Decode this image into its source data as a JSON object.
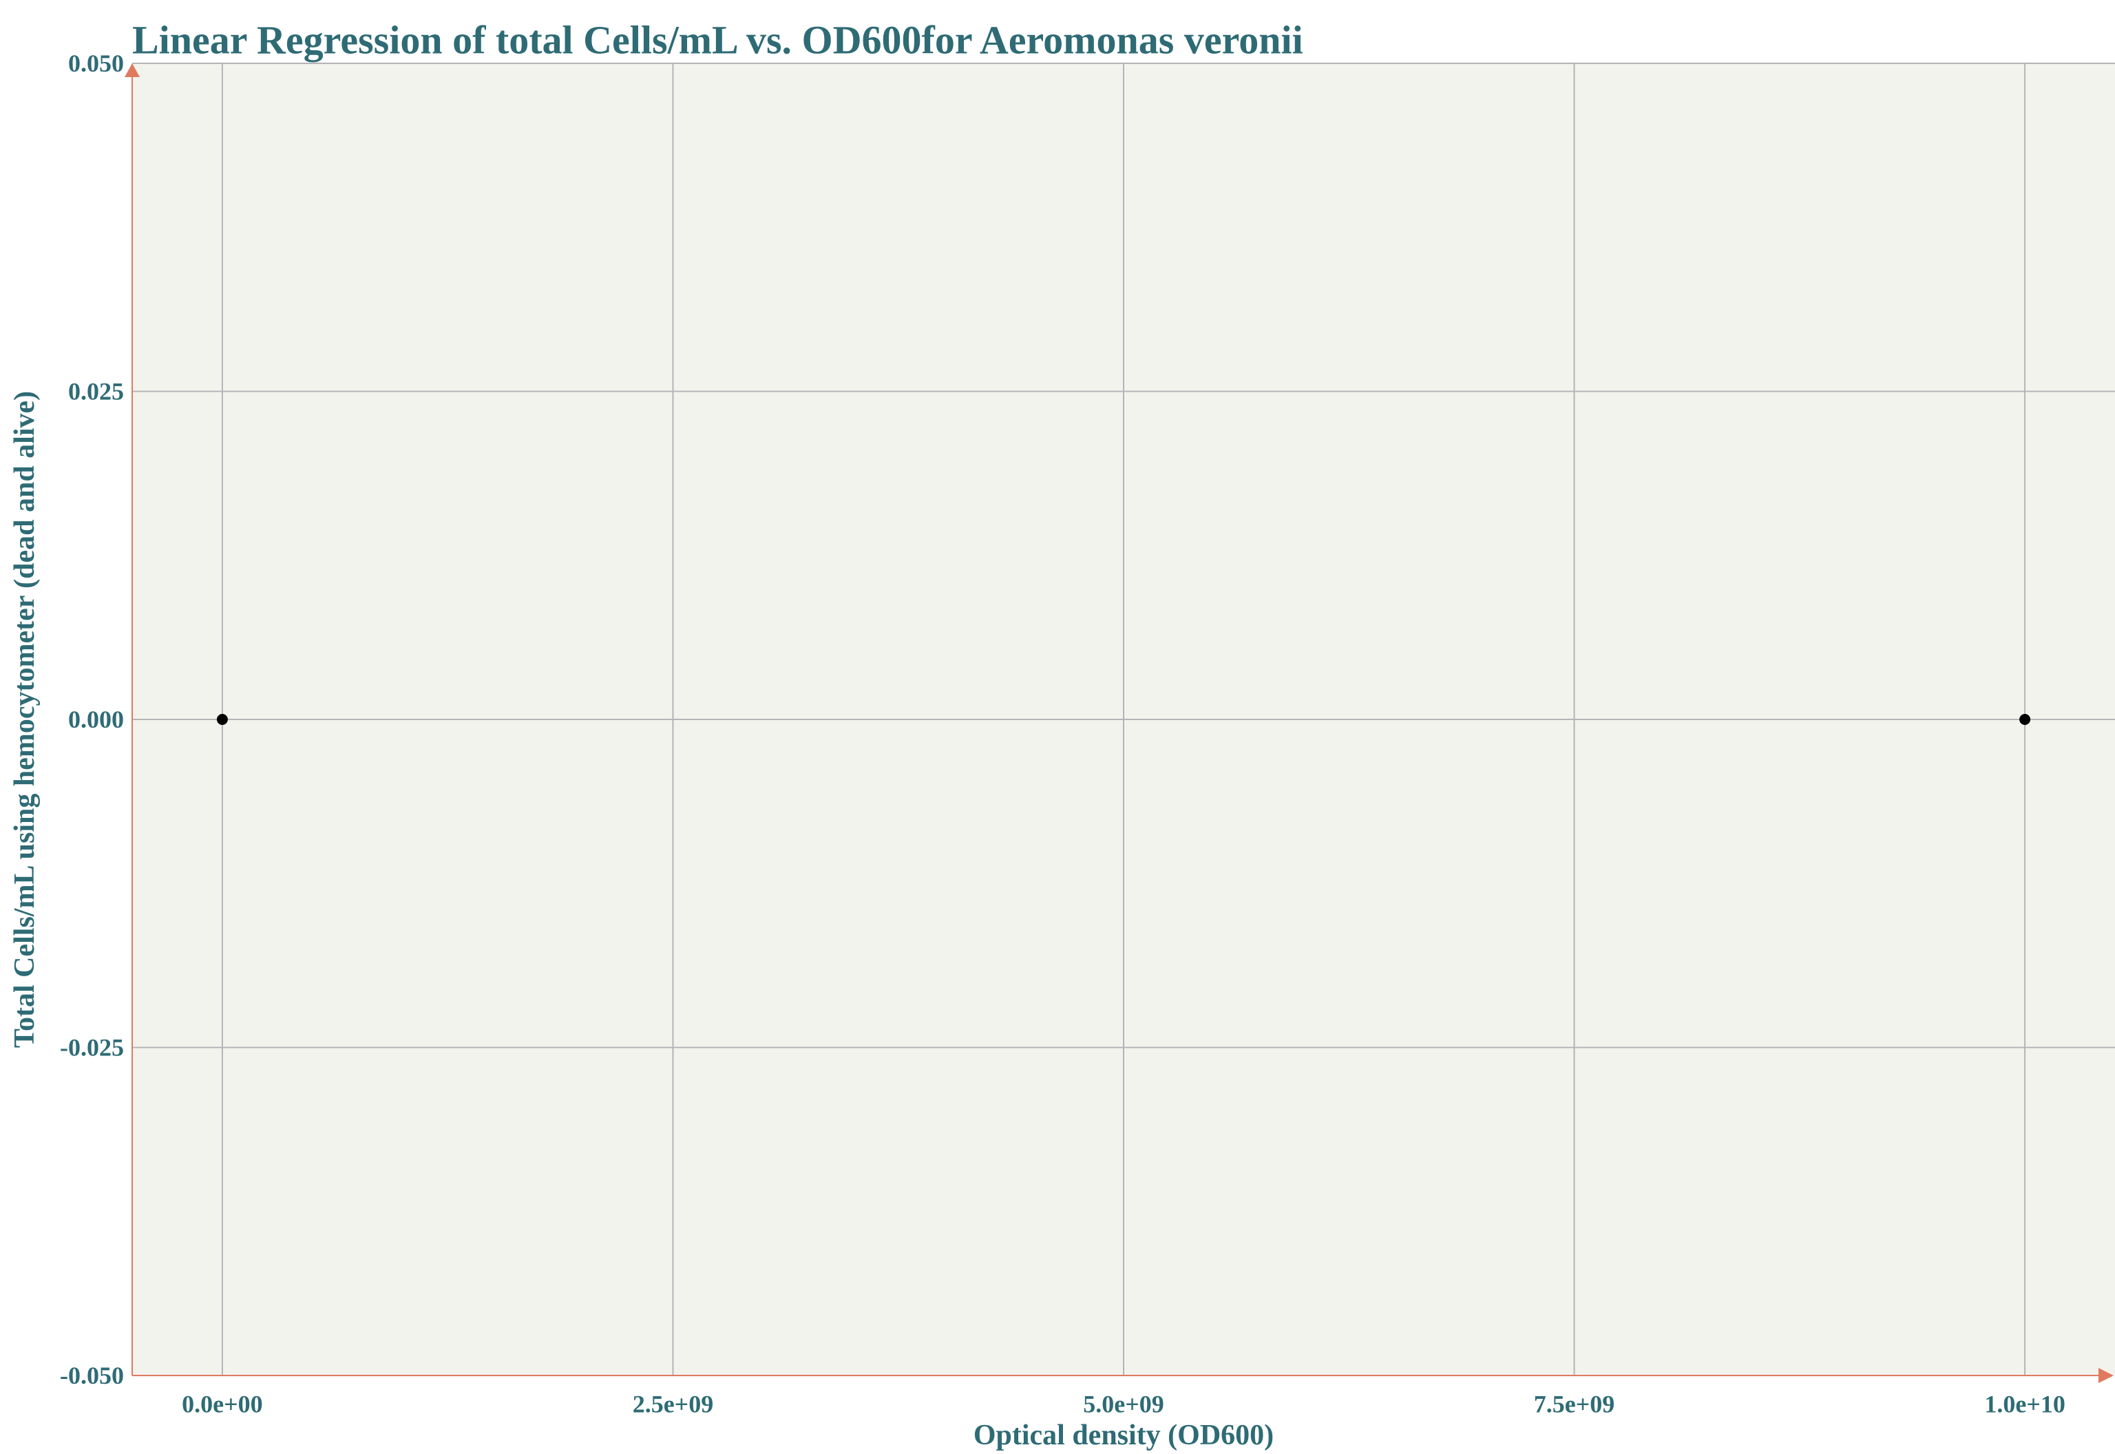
{
  "chart_data": {
    "type": "scatter",
    "title": "Linear Regression of total Cells/mL vs. OD600for Aeromonas veronii",
    "xlabel": "Optical density (OD600)",
    "ylabel": "Total Cells/mL using hemocytometer (dead and alive)",
    "xlim": [
      -500000000,
      10500000000
    ],
    "ylim": [
      -0.05,
      0.05
    ],
    "x_ticks": [
      0,
      2500000000,
      5000000000,
      7500000000,
      10000000000
    ],
    "x_tick_labels": [
      "0.0e+00",
      "2.5e+09",
      "5.0e+09",
      "7.5e+09",
      "1.0e+10"
    ],
    "y_ticks": [
      -0.05,
      -0.025,
      0,
      0.025,
      0.05
    ],
    "y_tick_labels": [
      "-0.050",
      "-0.025",
      "0.000",
      "0.025",
      "0.050"
    ],
    "grid": true,
    "series": [
      {
        "points": [
          {
            "x": 0,
            "y": 0
          },
          {
            "x": 10000000000,
            "y": 0
          }
        ]
      }
    ]
  },
  "colors": {
    "text": "#2e6b75",
    "axis": "#e07a5f",
    "plot_background": "#f3f3ee",
    "grid": "#b4b4b8",
    "point": "#000000"
  }
}
